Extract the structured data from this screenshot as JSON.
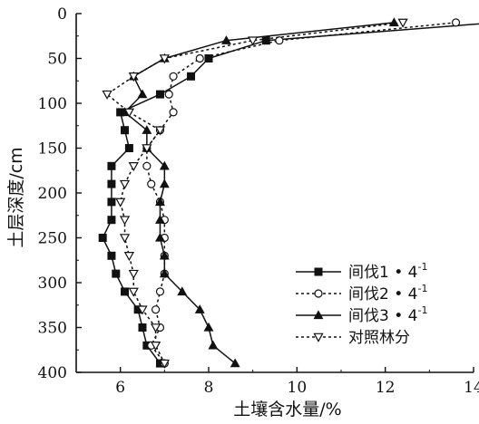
{
  "chart_data": {
    "type": "line",
    "orientation": "depth-profile",
    "title": "",
    "xlabel": "土壤含水量/%",
    "ylabel": "土层深度/cm",
    "xlim": [
      5,
      14
    ],
    "ylim": [
      0,
      400
    ],
    "y_inverted": true,
    "x_ticks": [
      6,
      8,
      10,
      12,
      14
    ],
    "y_ticks": [
      0,
      50,
      100,
      150,
      200,
      250,
      300,
      350,
      400
    ],
    "grid": false,
    "legend_position": "bottom-right",
    "series": [
      {
        "name": "间伐1 • 4",
        "name_sup": "-1",
        "marker": "square-filled",
        "line": "solid",
        "color": "#111111",
        "points": [
          [
            14.5,
            10
          ],
          [
            9.3,
            30
          ],
          [
            8.0,
            50
          ],
          [
            7.6,
            70
          ],
          [
            6.9,
            90
          ],
          [
            6.0,
            110
          ],
          [
            6.1,
            130
          ],
          [
            6.2,
            150
          ],
          [
            5.8,
            170
          ],
          [
            5.8,
            190
          ],
          [
            5.8,
            210
          ],
          [
            5.8,
            230
          ],
          [
            5.6,
            250
          ],
          [
            5.8,
            270
          ],
          [
            5.9,
            290
          ],
          [
            6.1,
            310
          ],
          [
            6.4,
            330
          ],
          [
            6.5,
            350
          ],
          [
            6.6,
            370
          ],
          [
            6.9,
            390
          ]
        ]
      },
      {
        "name": "间伐2 • 4",
        "name_sup": "-1",
        "marker": "circle-open",
        "line": "dotted",
        "color": "#111111",
        "points": [
          [
            13.6,
            10
          ],
          [
            9.6,
            30
          ],
          [
            7.8,
            50
          ],
          [
            7.2,
            70
          ],
          [
            7.1,
            90
          ],
          [
            7.2,
            110
          ],
          [
            6.9,
            130
          ],
          [
            6.6,
            150
          ],
          [
            6.6,
            170
          ],
          [
            6.7,
            190
          ],
          [
            6.9,
            210
          ],
          [
            7.0,
            230
          ],
          [
            7.0,
            250
          ],
          [
            7.0,
            270
          ],
          [
            7.0,
            290
          ],
          [
            6.9,
            310
          ],
          [
            6.8,
            330
          ],
          [
            6.9,
            350
          ],
          [
            6.7,
            370
          ],
          [
            7.0,
            390
          ]
        ]
      },
      {
        "name": "间伐3 • 4",
        "name_sup": "-1",
        "marker": "triangle-filled",
        "line": "solid",
        "color": "#111111",
        "points": [
          [
            12.2,
            10
          ],
          [
            8.4,
            30
          ],
          [
            7.0,
            50
          ],
          [
            6.3,
            70
          ],
          [
            6.5,
            90
          ],
          [
            6.1,
            110
          ],
          [
            6.6,
            130
          ],
          [
            6.6,
            150
          ],
          [
            7.0,
            170
          ],
          [
            7.0,
            190
          ],
          [
            6.9,
            210
          ],
          [
            6.9,
            230
          ],
          [
            6.9,
            250
          ],
          [
            7.0,
            270
          ],
          [
            7.0,
            290
          ],
          [
            7.4,
            310
          ],
          [
            7.8,
            330
          ],
          [
            8.0,
            350
          ],
          [
            8.1,
            370
          ],
          [
            8.6,
            390
          ]
        ]
      },
      {
        "name": "对照林分",
        "name_sup": "",
        "marker": "triangle-down-open",
        "line": "dotted",
        "color": "#111111",
        "points": [
          [
            12.4,
            10
          ],
          [
            9.0,
            30
          ],
          [
            7.0,
            50
          ],
          [
            6.3,
            70
          ],
          [
            5.7,
            90
          ],
          [
            6.2,
            110
          ],
          [
            6.9,
            130
          ],
          [
            6.6,
            150
          ],
          [
            6.3,
            170
          ],
          [
            6.1,
            190
          ],
          [
            6.0,
            210
          ],
          [
            6.1,
            230
          ],
          [
            6.1,
            250
          ],
          [
            6.2,
            270
          ],
          [
            6.3,
            290
          ],
          [
            6.3,
            310
          ],
          [
            6.5,
            330
          ],
          [
            6.8,
            350
          ],
          [
            6.8,
            370
          ],
          [
            7.0,
            390
          ]
        ]
      }
    ]
  }
}
